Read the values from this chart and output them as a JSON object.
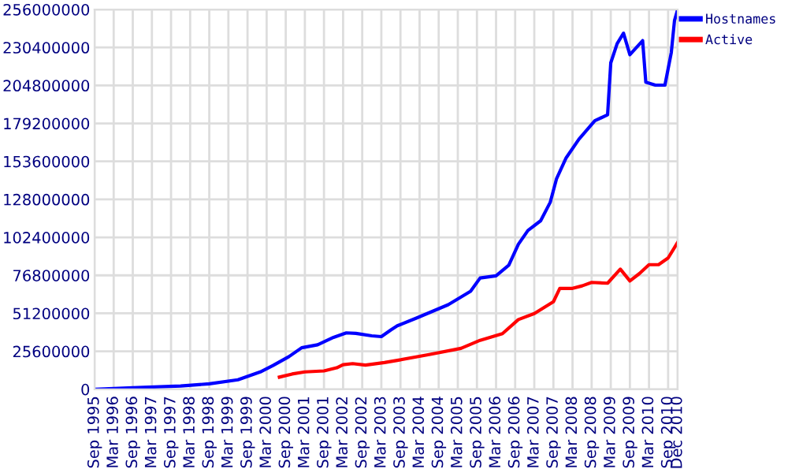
{
  "chart_data": {
    "type": "line",
    "series": [
      {
        "name": "Hostnames",
        "color": "#0000ff",
        "x": [
          "1995-09",
          "1996-09",
          "1997-12",
          "1998-09",
          "1999-06",
          "2000-01",
          "2000-05",
          "2000-10",
          "2001-02",
          "2001-07",
          "2001-12",
          "2002-04",
          "2002-07",
          "2002-12",
          "2003-03",
          "2003-06",
          "2003-08",
          "2004-02",
          "2004-12",
          "2005-07",
          "2005-10",
          "2006-03",
          "2006-07",
          "2006-10",
          "2007-01",
          "2007-05",
          "2007-08",
          "2007-10",
          "2008-01",
          "2008-05",
          "2008-10",
          "2009-02",
          "2009-03",
          "2009-05",
          "2009-07",
          "2009-09",
          "2010-01",
          "2010-02",
          "2010-05",
          "2010-08",
          "2010-10",
          "2010-11",
          "2010-12"
        ],
        "values": [
          0,
          1000000,
          2200000,
          3700000,
          6400000,
          11700000,
          16000000,
          22000000,
          28000000,
          30000000,
          35000000,
          38000000,
          37700000,
          36000000,
          35500000,
          40000000,
          42800000,
          48000000,
          57000000,
          66000000,
          75000000,
          76500000,
          83600000,
          97700000,
          107000000,
          113600000,
          126000000,
          142000000,
          156000000,
          168500000,
          181000000,
          185000000,
          220000000,
          233000000,
          240000000,
          225500000,
          235000000,
          207000000,
          205000000,
          205000000,
          227000000,
          248500000,
          256000000
        ]
      },
      {
        "name": "Active",
        "color": "#ff0000",
        "x": [
          "2000-07",
          "2000-11",
          "2001-03",
          "2001-09",
          "2002-01",
          "2002-03",
          "2002-06",
          "2002-10",
          "2003-04",
          "2003-08",
          "2004-06",
          "2005-04",
          "2005-10",
          "2006-05",
          "2006-10",
          "2007-03",
          "2007-09",
          "2007-11",
          "2008-03",
          "2008-06",
          "2008-09",
          "2009-02",
          "2009-06",
          "2009-09",
          "2009-12",
          "2010-03",
          "2010-06",
          "2010-09",
          "2010-12"
        ],
        "values": [
          8200000,
          10300000,
          11700000,
          12400000,
          14500000,
          16600000,
          17300000,
          16300000,
          18000000,
          19500000,
          23400000,
          27600000,
          33000000,
          37500000,
          47000000,
          51000000,
          59000000,
          68000000,
          68000000,
          69700000,
          72000000,
          71500000,
          81000000,
          73000000,
          78000000,
          84000000,
          84000000,
          88500000,
          99000000
        ]
      }
    ],
    "xlim": [
      "1995-09",
      "2010-12"
    ],
    "xticks": [
      {
        "value": "1995-09",
        "label": "Sep 1995"
      },
      {
        "value": "1996-03",
        "label": "Mar 1996"
      },
      {
        "value": "1996-09",
        "label": "Sep 1996"
      },
      {
        "value": "1997-03",
        "label": "Mar 1997"
      },
      {
        "value": "1997-09",
        "label": "Sep 1997"
      },
      {
        "value": "1998-03",
        "label": "Mar 1998"
      },
      {
        "value": "1998-09",
        "label": "Sep 1998"
      },
      {
        "value": "1999-03",
        "label": "Mar 1999"
      },
      {
        "value": "1999-09",
        "label": "Sep 1999"
      },
      {
        "value": "2000-03",
        "label": "Mar 2000"
      },
      {
        "value": "2000-09",
        "label": "Sep 2000"
      },
      {
        "value": "2001-03",
        "label": "Mar 2001"
      },
      {
        "value": "2001-09",
        "label": "Sep 2001"
      },
      {
        "value": "2002-03",
        "label": "Mar 2002"
      },
      {
        "value": "2002-09",
        "label": "Sep 2002"
      },
      {
        "value": "2003-03",
        "label": "Mar 2003"
      },
      {
        "value": "2003-09",
        "label": "Sep 2003"
      },
      {
        "value": "2004-03",
        "label": "Mar 2004"
      },
      {
        "value": "2004-09",
        "label": "Sep 2004"
      },
      {
        "value": "2005-03",
        "label": "Mar 2005"
      },
      {
        "value": "2005-09",
        "label": "Sep 2005"
      },
      {
        "value": "2006-03",
        "label": "Mar 2006"
      },
      {
        "value": "2006-09",
        "label": "Sep 2006"
      },
      {
        "value": "2007-03",
        "label": "Mar 2007"
      },
      {
        "value": "2007-09",
        "label": "Sep 2007"
      },
      {
        "value": "2008-03",
        "label": "Mar 2008"
      },
      {
        "value": "2008-09",
        "label": "Sep 2008"
      },
      {
        "value": "2009-03",
        "label": "Mar 2009"
      },
      {
        "value": "2009-09",
        "label": "Sep 2009"
      },
      {
        "value": "2010-03",
        "label": "Mar 2010"
      },
      {
        "value": "2010-09",
        "label": "Sep 2010"
      },
      {
        "value": "2010-12",
        "label": "Dec 2010"
      }
    ],
    "ylim": [
      0,
      256000000
    ],
    "yticks": [
      0,
      25600000,
      51200000,
      76800000,
      102400000,
      128000000,
      153600000,
      179200000,
      204800000,
      230400000,
      256000000
    ],
    "grid": true,
    "legend": "top right",
    "marker": "none",
    "line_style": "solid"
  }
}
